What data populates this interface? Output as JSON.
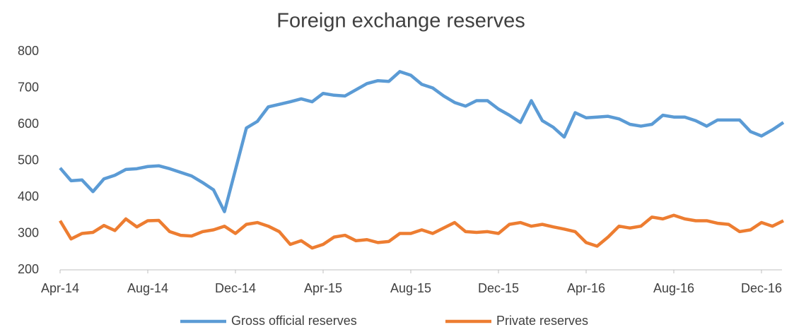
{
  "chart_data": {
    "type": "line",
    "title": "Foreign exchange reserves",
    "categories": [
      "Apr-14",
      null,
      null,
      null,
      null,
      null,
      null,
      null,
      "Aug-14",
      null,
      null,
      null,
      null,
      null,
      null,
      null,
      "Dec-14",
      null,
      null,
      null,
      null,
      null,
      null,
      null,
      "Apr-15",
      null,
      null,
      null,
      null,
      null,
      null,
      null,
      "Aug-15",
      null,
      null,
      null,
      null,
      null,
      null,
      null,
      "Dec-15",
      null,
      null,
      null,
      null,
      null,
      null,
      null,
      "Apr-16",
      null,
      null,
      null,
      null,
      null,
      null,
      null,
      "Aug-16",
      null,
      null,
      null,
      null,
      null,
      null,
      null,
      "Dec-16",
      null,
      null
    ],
    "series": [
      {
        "name": "Gross official reserves",
        "color": "#5b9bd5",
        "values": [
          480,
          445,
          447,
          415,
          450,
          460,
          476,
          478,
          484,
          486,
          478,
          468,
          458,
          440,
          420,
          360,
          475,
          590,
          608,
          648,
          655,
          662,
          670,
          662,
          685,
          680,
          678,
          695,
          712,
          720,
          718,
          745,
          735,
          710,
          700,
          678,
          660,
          650,
          665,
          665,
          642,
          625,
          605,
          665,
          610,
          592,
          565,
          632,
          618,
          620,
          622,
          615,
          600,
          595,
          600,
          625,
          620,
          620,
          610,
          595,
          612,
          612,
          612,
          580,
          568,
          585,
          605
        ]
      },
      {
        "name": "Private reserves",
        "color": "#ed7d31",
        "values": [
          335,
          285,
          300,
          303,
          322,
          308,
          340,
          318,
          335,
          336,
          305,
          295,
          293,
          305,
          310,
          320,
          300,
          325,
          330,
          320,
          305,
          270,
          280,
          260,
          270,
          290,
          295,
          280,
          283,
          275,
          278,
          300,
          300,
          310,
          300,
          315,
          330,
          305,
          303,
          305,
          300,
          325,
          330,
          320,
          325,
          318,
          312,
          305,
          275,
          265,
          290,
          320,
          315,
          320,
          345,
          340,
          350,
          340,
          335,
          335,
          328,
          325,
          305,
          310,
          330,
          320,
          335
        ]
      }
    ],
    "ylim": [
      200,
      800
    ],
    "yticks": [
      200,
      300,
      400,
      500,
      600,
      700,
      800
    ],
    "grid": false,
    "legend": "bottom"
  }
}
